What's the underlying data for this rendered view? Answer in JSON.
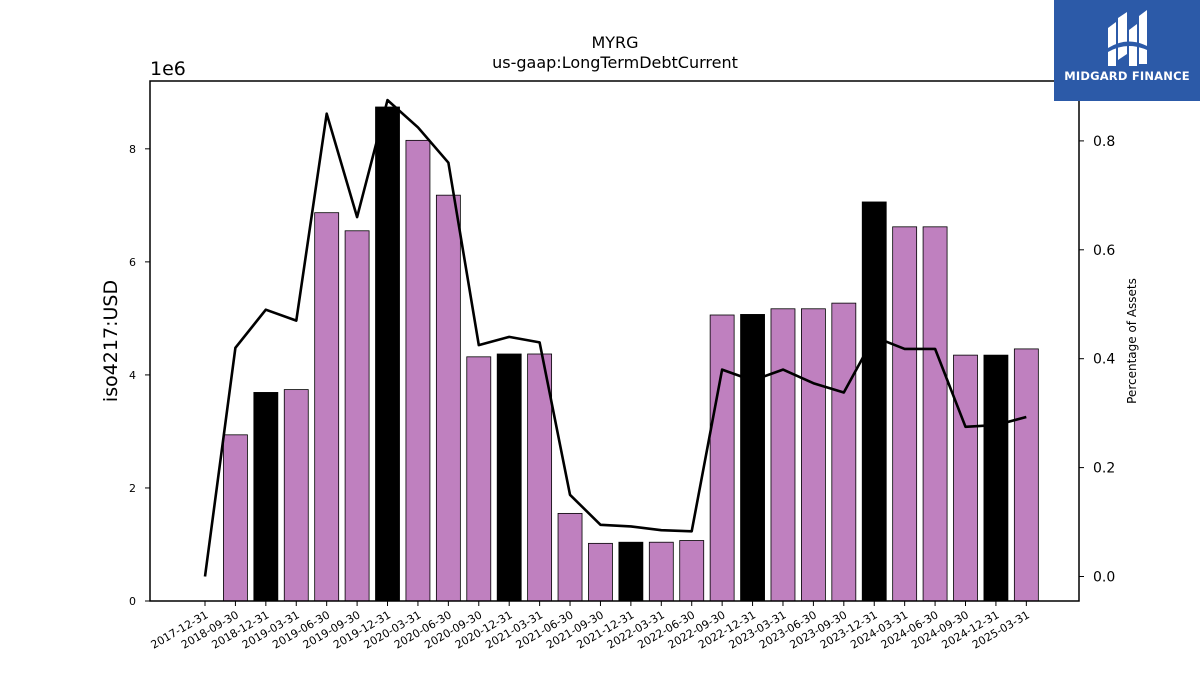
{
  "brand": {
    "name": "MIDGARD FINANCE",
    "icon": "midgard-logo-icon",
    "background": "#2c5aa8"
  },
  "chart_data": {
    "type": "bar",
    "title": "MYRG",
    "subtitle": "us-gaap:LongTermDebtCurrent",
    "ylabel": "iso4217:USD",
    "y_offset_label": "1e6",
    "y2label": "Percentage of Assets",
    "ylim": [
      0,
      9200000
    ],
    "y2lim": [
      -0.045,
      0.91
    ],
    "yticks": [
      0,
      2000000,
      4000000,
      6000000,
      8000000
    ],
    "ytick_labels": [
      "0",
      "2",
      "4",
      "6",
      "8"
    ],
    "y2ticks": [
      0.0,
      0.2,
      0.4,
      0.6,
      0.8
    ],
    "y2tick_labels": [
      "0.0",
      "0.2",
      "0.4",
      "0.6",
      "0.8"
    ],
    "categories": [
      "2017-12-31",
      "2018-09-30",
      "2018-12-31",
      "2019-03-31",
      "2019-06-30",
      "2019-09-30",
      "2019-12-31",
      "2020-03-31",
      "2020-06-30",
      "2020-09-30",
      "2020-12-31",
      "2021-03-31",
      "2021-06-30",
      "2021-09-30",
      "2021-12-31",
      "2022-03-31",
      "2022-06-30",
      "2022-09-30",
      "2022-12-31",
      "2023-03-31",
      "2023-06-30",
      "2023-09-30",
      "2023-12-31",
      "2024-03-31",
      "2024-06-30",
      "2024-09-30",
      "2024-12-31",
      "2025-03-31"
    ],
    "series": [
      {
        "kind": "bar",
        "values": [
          0,
          2940000,
          3690000,
          3740000,
          6870000,
          6550000,
          8740000,
          8150000,
          7180000,
          4320000,
          4370000,
          4370000,
          1550000,
          1020000,
          1040000,
          1040000,
          1070000,
          5060000,
          5070000,
          5170000,
          5170000,
          5270000,
          7060000,
          6620000,
          6620000,
          4350000,
          4350000,
          4460000
        ],
        "highlight": [
          false,
          false,
          true,
          false,
          false,
          false,
          true,
          false,
          false,
          false,
          true,
          false,
          false,
          false,
          true,
          false,
          false,
          false,
          true,
          false,
          false,
          false,
          true,
          false,
          false,
          false,
          true,
          false
        ],
        "color": "#bf80bf",
        "highlight_color": "#000000"
      },
      {
        "kind": "line",
        "axis": "right",
        "values": [
          0.0,
          0.42,
          0.49,
          0.47,
          0.85,
          0.66,
          0.875,
          0.825,
          0.76,
          0.425,
          0.44,
          0.43,
          0.15,
          0.095,
          0.092,
          0.085,
          0.083,
          0.38,
          0.36,
          0.38,
          0.355,
          0.338,
          0.44,
          0.418,
          0.418,
          0.275,
          0.278,
          0.293
        ],
        "color": "#000000"
      }
    ]
  }
}
